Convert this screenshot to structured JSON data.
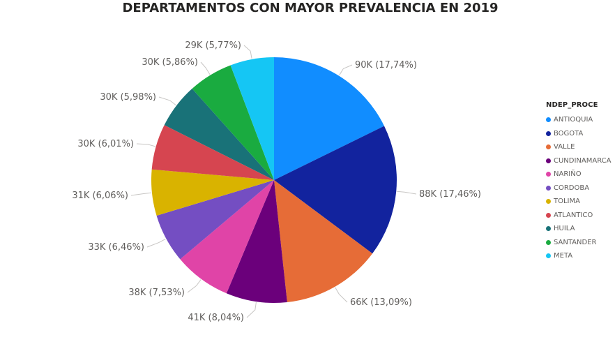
{
  "chart_data": {
    "type": "pie",
    "title": "DEPARTAMENTOS CON MAYOR PREVALENCIA EN 2019",
    "legend_title": "NDEP_PROCE",
    "legend_position": "right",
    "slices": [
      {
        "name": "ANTIOQUIA",
        "label": "90K (17,74%)",
        "percent": 17.74,
        "color": "#118DFF"
      },
      {
        "name": "BOGOTA",
        "label": "88K (17,46%)",
        "percent": 17.46,
        "color": "#12239E"
      },
      {
        "name": "VALLE",
        "label": "66K (13,09%)",
        "percent": 13.09,
        "color": "#E66C37"
      },
      {
        "name": "CUNDINAMARCA",
        "label": "41K (8,04%)",
        "percent": 8.04,
        "color": "#6B007B"
      },
      {
        "name": "NARIÑO",
        "label": "38K (7,53%)",
        "percent": 7.53,
        "color": "#E044A7"
      },
      {
        "name": "CORDOBA",
        "label": "33K (6,46%)",
        "percent": 6.46,
        "color": "#744EC2"
      },
      {
        "name": "TOLIMA",
        "label": "31K (6,06%)",
        "percent": 6.06,
        "color": "#D9B300"
      },
      {
        "name": "ATLANTICO",
        "label": "30K (6,01%)",
        "percent": 6.01,
        "color": "#D64550"
      },
      {
        "name": "HUILA",
        "label": "30K (5,98%)",
        "percent": 5.98,
        "color": "#197278"
      },
      {
        "name": "SANTANDER",
        "label": "30K (5,86%)",
        "percent": 5.86,
        "color": "#1AAB40"
      },
      {
        "name": "META",
        "label": "29K (5,77%)",
        "percent": 5.77,
        "color": "#15C6F4"
      }
    ]
  }
}
